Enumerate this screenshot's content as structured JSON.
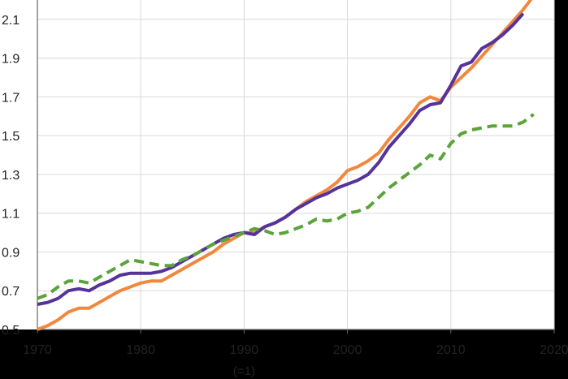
{
  "chart_data": {
    "type": "line",
    "title": "",
    "xlabel": "",
    "ylabel": "",
    "xlim": [
      1970,
      2020
    ],
    "ylim": [
      0.5,
      2.2
    ],
    "x_ticks": [
      1970,
      1980,
      1990,
      2000,
      2010,
      2020
    ],
    "y_ticks": [
      0.5,
      0.7,
      0.9,
      1.1,
      1.3,
      1.5,
      1.7,
      1.9,
      2.1
    ],
    "x_ticks_text": [
      "1970",
      "1980",
      "1990",
      "2000",
      "2010",
      "2020"
    ],
    "y_ticks_text": [
      "0.5",
      "0.7",
      "0.9",
      "1.1",
      "1.3",
      "1.5",
      "1.7",
      "1.9",
      "2.1"
    ],
    "annotation": "(=1)",
    "grid": true,
    "legend": "none",
    "series": [
      {
        "color": "#f0883e",
        "style": "solid",
        "points": [
          [
            1970,
            0.5
          ],
          [
            1971,
            0.52
          ],
          [
            1972,
            0.55
          ],
          [
            1973,
            0.59
          ],
          [
            1974,
            0.61
          ],
          [
            1975,
            0.61
          ],
          [
            1976,
            0.64
          ],
          [
            1977,
            0.67
          ],
          [
            1978,
            0.7
          ],
          [
            1979,
            0.72
          ],
          [
            1980,
            0.74
          ],
          [
            1981,
            0.75
          ],
          [
            1982,
            0.75
          ],
          [
            1983,
            0.78
          ],
          [
            1984,
            0.81
          ],
          [
            1985,
            0.84
          ],
          [
            1986,
            0.87
          ],
          [
            1987,
            0.9
          ],
          [
            1988,
            0.94
          ],
          [
            1989,
            0.97
          ],
          [
            1990,
            1.0
          ],
          [
            1991,
            1.0
          ],
          [
            1992,
            1.03
          ],
          [
            1993,
            1.05
          ],
          [
            1994,
            1.08
          ],
          [
            1995,
            1.12
          ],
          [
            1996,
            1.16
          ],
          [
            1997,
            1.19
          ],
          [
            1998,
            1.22
          ],
          [
            1999,
            1.26
          ],
          [
            2000,
            1.32
          ],
          [
            2001,
            1.34
          ],
          [
            2002,
            1.37
          ],
          [
            2003,
            1.41
          ],
          [
            2004,
            1.48
          ],
          [
            2005,
            1.54
          ],
          [
            2006,
            1.6
          ],
          [
            2007,
            1.67
          ],
          [
            2008,
            1.7
          ],
          [
            2009,
            1.68
          ],
          [
            2010,
            1.75
          ],
          [
            2011,
            1.8
          ],
          [
            2012,
            1.85
          ],
          [
            2013,
            1.91
          ],
          [
            2014,
            1.97
          ],
          [
            2015,
            2.03
          ],
          [
            2016,
            2.09
          ],
          [
            2017,
            2.15
          ],
          [
            2018,
            2.22
          ]
        ]
      },
      {
        "color": "#55339a",
        "style": "solid",
        "points": [
          [
            1970,
            0.63
          ],
          [
            1971,
            0.64
          ],
          [
            1972,
            0.66
          ],
          [
            1973,
            0.7
          ],
          [
            1974,
            0.71
          ],
          [
            1975,
            0.7
          ],
          [
            1976,
            0.73
          ],
          [
            1977,
            0.75
          ],
          [
            1978,
            0.78
          ],
          [
            1979,
            0.79
          ],
          [
            1980,
            0.79
          ],
          [
            1981,
            0.79
          ],
          [
            1982,
            0.8
          ],
          [
            1983,
            0.82
          ],
          [
            1984,
            0.85
          ],
          [
            1985,
            0.88
          ],
          [
            1986,
            0.91
          ],
          [
            1987,
            0.94
          ],
          [
            1988,
            0.97
          ],
          [
            1989,
            0.99
          ],
          [
            1990,
            1.0
          ],
          [
            1991,
            0.99
          ],
          [
            1992,
            1.03
          ],
          [
            1993,
            1.05
          ],
          [
            1994,
            1.08
          ],
          [
            1995,
            1.12
          ],
          [
            1996,
            1.15
          ],
          [
            1997,
            1.18
          ],
          [
            1998,
            1.2
          ],
          [
            1999,
            1.23
          ],
          [
            2000,
            1.25
          ],
          [
            2001,
            1.27
          ],
          [
            2002,
            1.3
          ],
          [
            2003,
            1.36
          ],
          [
            2004,
            1.44
          ],
          [
            2005,
            1.5
          ],
          [
            2006,
            1.56
          ],
          [
            2007,
            1.63
          ],
          [
            2008,
            1.66
          ],
          [
            2009,
            1.67
          ],
          [
            2010,
            1.76
          ],
          [
            2011,
            1.86
          ],
          [
            2012,
            1.88
          ],
          [
            2013,
            1.95
          ],
          [
            2014,
            1.98
          ],
          [
            2015,
            2.02
          ],
          [
            2016,
            2.07
          ],
          [
            2017,
            2.13
          ]
        ]
      },
      {
        "color": "#5ba33b",
        "style": "dashed",
        "points": [
          [
            1970,
            0.66
          ],
          [
            1971,
            0.68
          ],
          [
            1972,
            0.72
          ],
          [
            1973,
            0.75
          ],
          [
            1974,
            0.75
          ],
          [
            1975,
            0.74
          ],
          [
            1976,
            0.77
          ],
          [
            1977,
            0.8
          ],
          [
            1978,
            0.83
          ],
          [
            1979,
            0.86
          ],
          [
            1980,
            0.85
          ],
          [
            1981,
            0.84
          ],
          [
            1982,
            0.83
          ],
          [
            1983,
            0.83
          ],
          [
            1984,
            0.86
          ],
          [
            1985,
            0.88
          ],
          [
            1986,
            0.91
          ],
          [
            1987,
            0.94
          ],
          [
            1988,
            0.96
          ],
          [
            1989,
            0.98
          ],
          [
            1990,
            1.0
          ],
          [
            1991,
            1.02
          ],
          [
            1992,
            1.01
          ],
          [
            1993,
            0.99
          ],
          [
            1994,
            1.0
          ],
          [
            1995,
            1.02
          ],
          [
            1996,
            1.04
          ],
          [
            1997,
            1.07
          ],
          [
            1998,
            1.06
          ],
          [
            1999,
            1.07
          ],
          [
            2000,
            1.1
          ],
          [
            2001,
            1.11
          ],
          [
            2002,
            1.13
          ],
          [
            2003,
            1.18
          ],
          [
            2004,
            1.23
          ],
          [
            2005,
            1.27
          ],
          [
            2006,
            1.31
          ],
          [
            2007,
            1.35
          ],
          [
            2008,
            1.4
          ],
          [
            2009,
            1.38
          ],
          [
            2010,
            1.46
          ],
          [
            2011,
            1.51
          ],
          [
            2012,
            1.53
          ],
          [
            2013,
            1.54
          ],
          [
            2014,
            1.55
          ],
          [
            2015,
            1.55
          ],
          [
            2016,
            1.55
          ],
          [
            2017,
            1.57
          ],
          [
            2018,
            1.61
          ]
        ]
      }
    ]
  }
}
